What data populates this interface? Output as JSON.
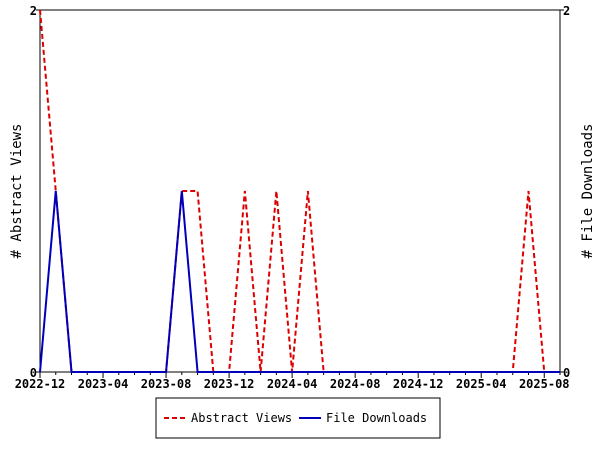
{
  "chart_data": {
    "type": "line",
    "title": "",
    "xlabel": "",
    "ylabel": "# Abstract Views",
    "y2label": "# File Downloads",
    "ylim": [
      0,
      2
    ],
    "y2lim": [
      0,
      2
    ],
    "y_ticks": [
      "0",
      "2"
    ],
    "y2_ticks": [
      "0",
      "2"
    ],
    "x": [
      "2022-12",
      "2023-01",
      "2023-02",
      "2023-03",
      "2023-04",
      "2023-05",
      "2023-06",
      "2023-07",
      "2023-08",
      "2023-09",
      "2023-10",
      "2023-11",
      "2023-12",
      "2024-01",
      "2024-02",
      "2024-03",
      "2024-04",
      "2024-05",
      "2024-06",
      "2024-07",
      "2024-08",
      "2024-09",
      "2024-10",
      "2024-11",
      "2024-12",
      "2025-01",
      "2025-02",
      "2025-03",
      "2025-04",
      "2025-05",
      "2025-06",
      "2025-07",
      "2025-08",
      "2025-09"
    ],
    "x_tick_labels": [
      "2022-12",
      "2023-04",
      "2023-08",
      "2023-12",
      "2024-04",
      "2024-08",
      "2024-12",
      "2025-04",
      "2025-08"
    ],
    "series": [
      {
        "name": "Abstract Views",
        "color": "#dd0000",
        "style": "dashed",
        "values": [
          2,
          1,
          0,
          0,
          0,
          0,
          0,
          0,
          0,
          1,
          1,
          0,
          0,
          1,
          0,
          1,
          0,
          1,
          0,
          0,
          0,
          0,
          0,
          0,
          0,
          0,
          0,
          0,
          0,
          0,
          0,
          1,
          0,
          0
        ]
      },
      {
        "name": "File Downloads",
        "color": "#0000bb",
        "style": "solid",
        "values": [
          0,
          1,
          0,
          0,
          0,
          0,
          0,
          0,
          0,
          1,
          0,
          0,
          0,
          0,
          0,
          0,
          0,
          0,
          0,
          0,
          0,
          0,
          0,
          0,
          0,
          0,
          0,
          0,
          0,
          0,
          0,
          0,
          0,
          0
        ]
      }
    ],
    "legend_position": "bottom-center",
    "grid": false
  }
}
